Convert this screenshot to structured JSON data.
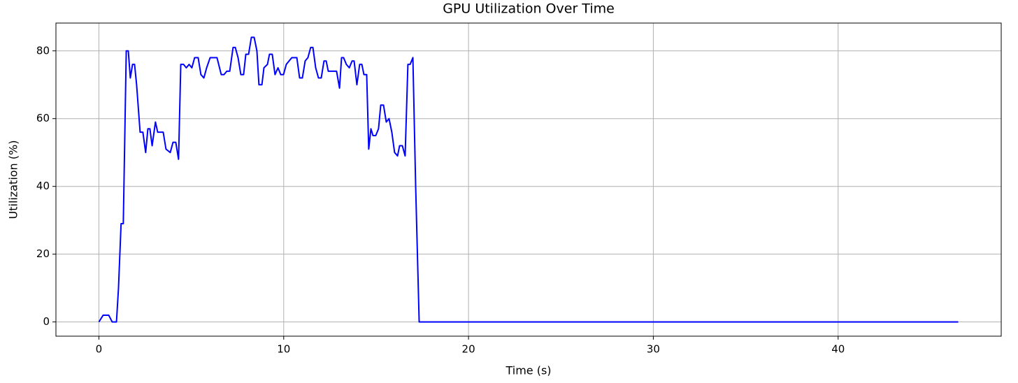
{
  "chart_data": {
    "type": "line",
    "title": "GPU Utilization Over Time",
    "x_label": "Time (s)",
    "y_label": "Utilization (%)",
    "x": [
      0,
      0.23,
      0.53,
      0.72,
      0.95,
      1.06,
      1.2,
      1.32,
      1.48,
      1.59,
      1.7,
      1.82,
      1.93,
      2.04,
      2.23,
      2.38,
      2.53,
      2.65,
      2.76,
      2.88,
      3.06,
      3.18,
      3.48,
      3.63,
      3.86,
      4.01,
      4.16,
      4.31,
      4.43,
      4.58,
      4.73,
      4.88,
      5.03,
      5.18,
      5.37,
      5.52,
      5.68,
      5.83,
      6.02,
      6.39,
      6.62,
      6.77,
      6.92,
      7.08,
      7.26,
      7.38,
      7.53,
      7.68,
      7.83,
      7.95,
      8.1,
      8.25,
      8.4,
      8.55,
      8.66,
      8.82,
      8.93,
      9.12,
      9.23,
      9.38,
      9.53,
      9.69,
      9.84,
      9.99,
      10.14,
      10.29,
      10.44,
      10.71,
      10.86,
      11.01,
      11.16,
      11.31,
      11.46,
      11.58,
      11.73,
      11.88,
      12.03,
      12.18,
      12.3,
      12.41,
      12.86,
      13.02,
      13.13,
      13.24,
      13.39,
      13.55,
      13.7,
      13.81,
      13.96,
      14.11,
      14.23,
      14.34,
      14.49,
      14.6,
      14.72,
      14.83,
      14.98,
      15.13,
      15.25,
      15.4,
      15.55,
      15.7,
      15.85,
      16.0,
      16.16,
      16.27,
      16.42,
      16.57,
      16.72,
      16.84,
      16.99,
      17.14,
      17.33,
      46.5
    ],
    "series": [
      {
        "name": "GPU Utilization",
        "color": "#0000ff",
        "values": [
          0,
          2,
          2,
          0,
          0,
          10,
          29,
          29,
          80,
          80,
          72,
          76,
          76,
          70,
          56,
          56,
          50,
          57,
          57,
          52,
          59,
          56,
          56,
          51,
          50,
          53,
          53,
          48,
          76,
          76,
          75,
          76,
          75,
          78,
          78,
          73,
          72,
          75,
          78,
          78,
          73,
          73,
          74,
          74,
          81,
          81,
          78,
          73,
          73,
          79,
          79,
          84,
          84,
          80,
          70,
          70,
          75,
          76,
          79,
          79,
          73,
          75,
          73,
          73,
          76,
          77,
          78,
          78,
          72,
          72,
          77,
          78,
          81,
          81,
          75,
          72,
          72,
          77,
          77,
          74,
          74,
          69,
          78,
          78,
          76,
          75,
          77,
          77,
          70,
          76,
          76,
          73,
          73,
          51,
          57,
          55,
          55,
          57,
          64,
          64,
          59,
          60,
          56,
          50,
          49,
          52,
          52,
          49,
          76,
          76,
          78,
          40,
          0,
          0
        ]
      }
    ],
    "xlim": [
      -2.325,
      48.825
    ],
    "xticks": [
      0,
      10,
      20,
      30,
      40
    ],
    "ylim": [
      -4.2,
      88.2
    ],
    "yticks": [
      0,
      20,
      40,
      60,
      80
    ],
    "grid": true
  }
}
